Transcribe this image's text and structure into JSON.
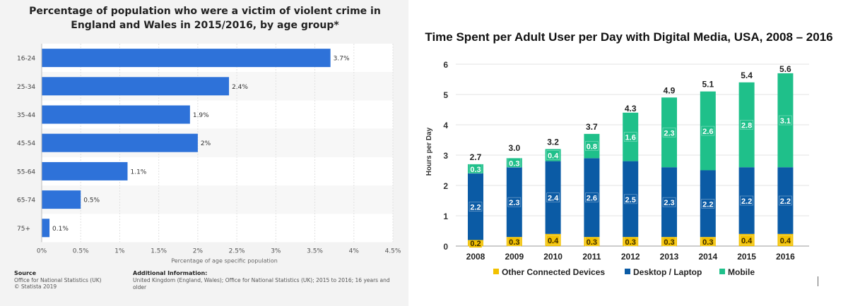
{
  "chart_data": [
    {
      "type": "bar",
      "orientation": "horizontal",
      "title": "Percentage of population who were a victim of violent crime in England and Wales in 2015/2016, by age group*",
      "xlabel": "Percentage of age specific population",
      "categories": [
        "16-24",
        "25-34",
        "35-44",
        "45-54",
        "55-64",
        "65-74",
        "75+"
      ],
      "values": [
        3.7,
        2.4,
        1.9,
        2,
        1.1,
        0.5,
        0.1
      ],
      "value_labels": [
        "3.7%",
        "2.4%",
        "1.9%",
        "2%",
        "1.1%",
        "0.5%",
        "0.1%"
      ],
      "x_ticks": [
        "0%",
        "0.5%",
        "1%",
        "1.5%",
        "2%",
        "2.5%",
        "3%",
        "3.5%",
        "4%",
        "4.5%"
      ],
      "xlim": [
        0,
        4.5
      ],
      "bar_color": "#2e72d9",
      "source_heading": "Source",
      "source_lines": [
        "Office for National Statistics (UK)",
        "© Statista 2019"
      ],
      "info_heading": "Additional Information:",
      "info_text": "United Kingdom (England, Wales); Office for National Statistics (UK); 2015 to 2016; 16 years and older"
    },
    {
      "type": "bar",
      "stacked": true,
      "title": "Time Spent per Adult User per Day with Digital Media, USA, 2008 – 2016",
      "ylabel": "Hours per Day",
      "categories": [
        "2008",
        "2009",
        "2010",
        "2011",
        "2012",
        "2013",
        "2014",
        "2015",
        "2016"
      ],
      "ylim": [
        0,
        6
      ],
      "y_ticks": [
        "0",
        "1",
        "2",
        "3",
        "4",
        "5",
        "6"
      ],
      "series": [
        {
          "name": "Other Connected Devices",
          "color": "#f2c100",
          "values": [
            0.2,
            0.3,
            0.4,
            0.3,
            0.3,
            0.3,
            0.3,
            0.4,
            0.4
          ],
          "labels": [
            "0.2",
            "0.3",
            "0.4",
            "0.3",
            "0.3",
            "0.3",
            "0.3",
            "0.4",
            "0.4"
          ]
        },
        {
          "name": "Desktop / Laptop",
          "color": "#0b5ba5",
          "values": [
            2.2,
            2.3,
            2.4,
            2.6,
            2.5,
            2.3,
            2.2,
            2.2,
            2.2
          ],
          "labels": [
            "2.2",
            "2.3",
            "2.4",
            "2.6",
            "2.5",
            "2.3",
            "2.2",
            "2.2",
            "2.2"
          ]
        },
        {
          "name": "Mobile",
          "color": "#1fc08a",
          "values": [
            0.3,
            0.3,
            0.4,
            0.8,
            1.6,
            2.3,
            2.6,
            2.8,
            3.1
          ],
          "labels": [
            "0.3",
            "0.3",
            "0.4",
            "0.8",
            "1.6",
            "2.3",
            "2.6",
            "2.8",
            "3.1"
          ]
        }
      ],
      "totals": [
        "2.7",
        "3.0",
        "3.2",
        "3.7",
        "4.3",
        "4.9",
        "5.1",
        "5.4",
        "5.6"
      ],
      "total_values": [
        2.7,
        3.0,
        3.2,
        3.7,
        4.3,
        4.9,
        5.1,
        5.4,
        5.6
      ],
      "legend_position": "bottom"
    }
  ]
}
